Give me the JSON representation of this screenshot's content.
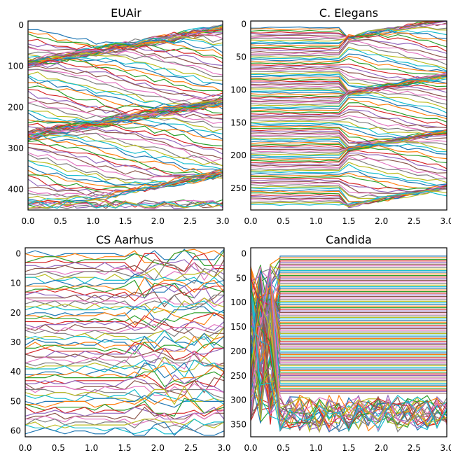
{
  "palette": [
    "#1f77b4",
    "#ff7f0e",
    "#2ca02c",
    "#d62728",
    "#9467bd",
    "#8c564b",
    "#e377c2",
    "#7f7f7f",
    "#bcbd22",
    "#17becf"
  ],
  "chart_data": [
    {
      "type": "line",
      "title": "EUAir",
      "xlabel": "",
      "ylabel": "",
      "xlim": [
        0.0,
        3.0
      ],
      "ylim": [
        450,
        -10
      ],
      "y_inverted": true,
      "grid": false,
      "xticks": [
        "0.0",
        "0.5",
        "1.0",
        "1.5",
        "2.0",
        "2.5",
        "3.0"
      ],
      "yticks": [
        "0",
        "100",
        "200",
        "300",
        "400"
      ],
      "n_series": 110,
      "series_style": "dense rank trajectories crossing over time; jagged band near bottom (≈425-445)"
    },
    {
      "type": "line",
      "title": "C. Elegans",
      "xlabel": "",
      "ylabel": "",
      "xlim": [
        0.0,
        3.0
      ],
      "ylim": [
        283,
        -5
      ],
      "y_inverted": true,
      "grid": false,
      "xticks": [
        "0.0",
        "0.5",
        "1.0",
        "1.5",
        "2.0",
        "2.5",
        "3.0"
      ],
      "yticks": [
        "0",
        "50",
        "100",
        "150",
        "200",
        "250"
      ],
      "n_series": 110,
      "series_style": "mostly flat lines with crossings between x=1.5 and x=3.0"
    },
    {
      "type": "line",
      "title": "CS Aarhus",
      "xlabel": "",
      "ylabel": "",
      "xlim": [
        0.0,
        3.0
      ],
      "ylim": [
        62,
        -2
      ],
      "y_inverted": true,
      "grid": false,
      "xticks": [
        "0.0",
        "0.5",
        "1.0",
        "1.5",
        "2.0",
        "2.5",
        "3.0"
      ],
      "yticks": [
        "0",
        "10",
        "20",
        "30",
        "40",
        "50",
        "60"
      ],
      "n_series": 61,
      "series_style": "flat lines at integer ranks with swaps, heaviest crossings between x=1.5 and x=3.0"
    },
    {
      "type": "line",
      "title": "Candida",
      "xlabel": "",
      "ylabel": "",
      "xlim": [
        0.0,
        3.0
      ],
      "ylim": [
        375,
        -12
      ],
      "y_inverted": true,
      "grid": false,
      "xticks": [
        "0.0",
        "0.5",
        "1.0",
        "1.5",
        "2.0",
        "2.5",
        "3.0"
      ],
      "yticks": [
        "0",
        "50",
        "100",
        "150",
        "200",
        "250",
        "300",
        "350"
      ],
      "n_series": 110,
      "series_style": "chaotic before x≈0.5 then mostly flat; band near 290-370 with jumps at x≈1.6"
    }
  ]
}
